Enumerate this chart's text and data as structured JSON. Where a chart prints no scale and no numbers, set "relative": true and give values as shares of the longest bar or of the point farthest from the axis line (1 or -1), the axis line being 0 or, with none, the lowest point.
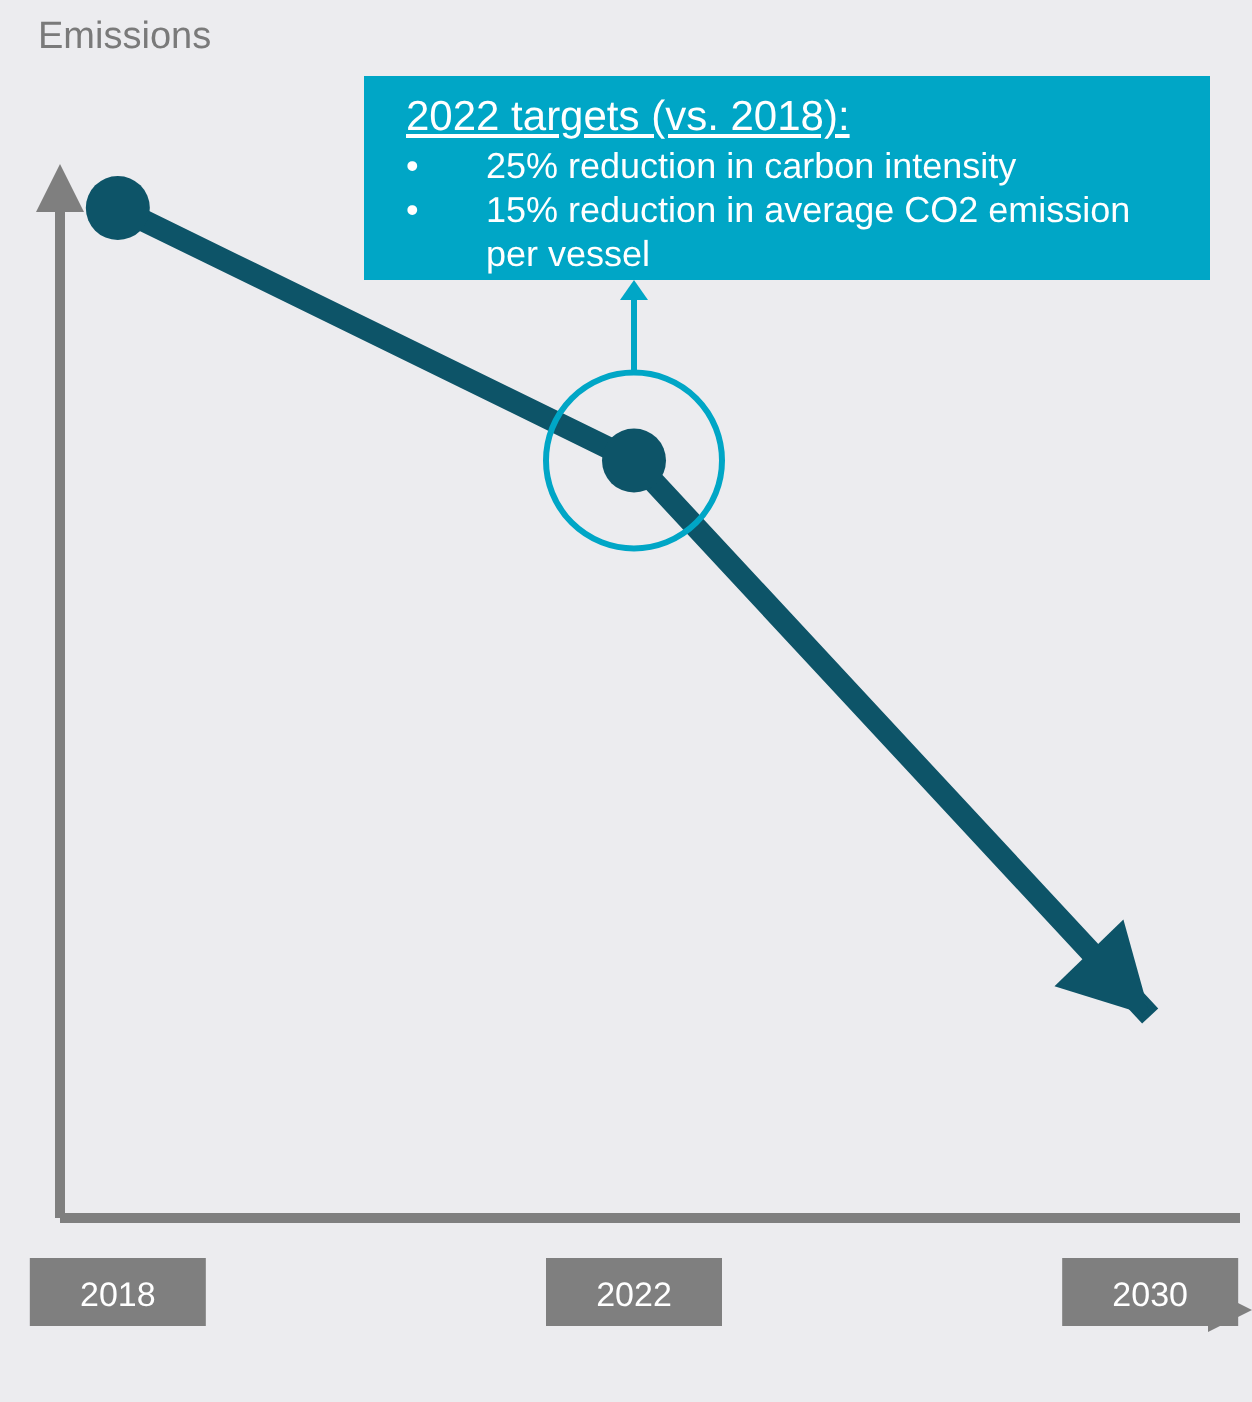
{
  "chart_data": {
    "type": "line",
    "relative": true,
    "ylabel": "Emissions",
    "categories": [
      "2018",
      "2022",
      "2030"
    ],
    "series": [
      {
        "color": "#0d5468",
        "values": [
          1,
          0.75,
          0.2
        ]
      }
    ],
    "marker": "circle",
    "line_style": "solid",
    "grid": false,
    "legend": false,
    "annotations": [
      "2022 targets (vs. 2018):",
      "• 25% reduction in carbon intensity",
      "• 15% reduction in  average CO2 emission per vessel"
    ]
  }
}
